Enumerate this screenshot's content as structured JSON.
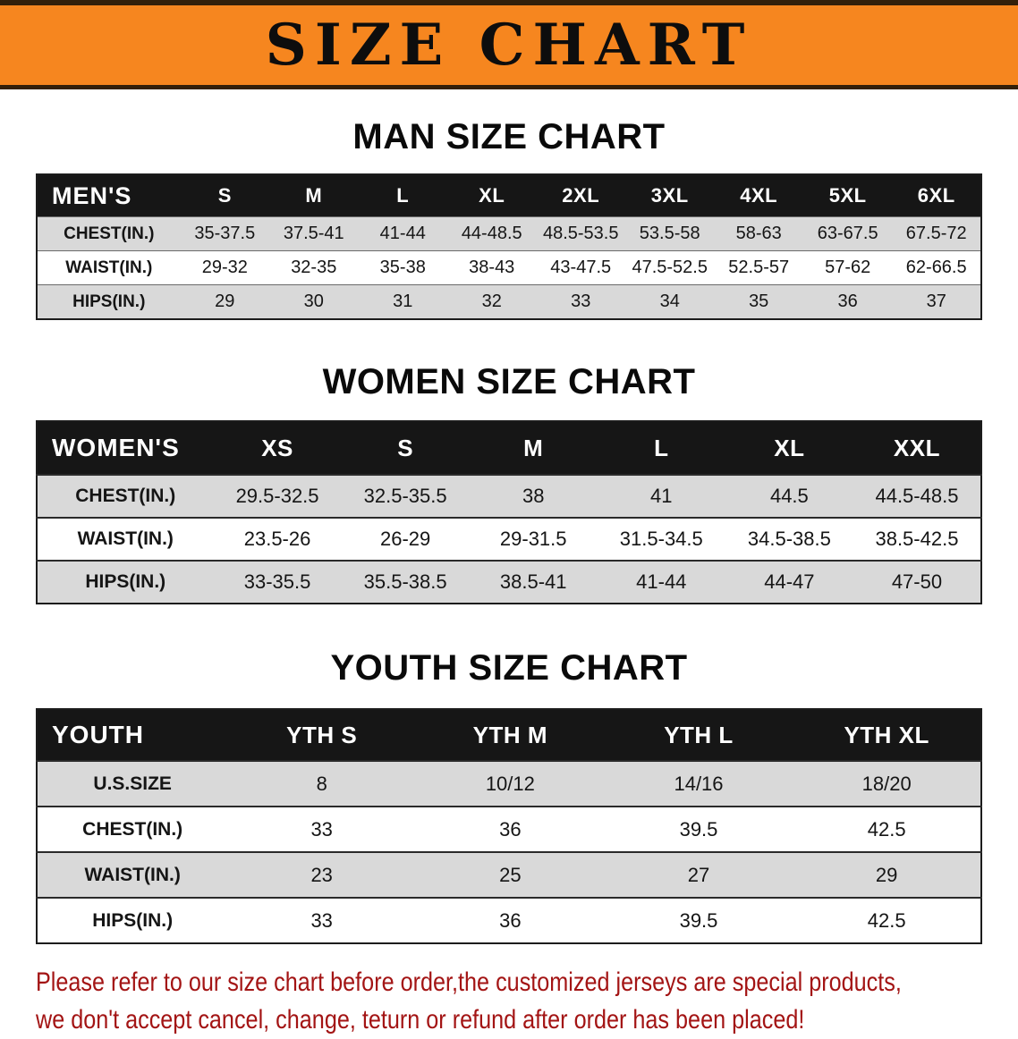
{
  "banner": {
    "title": "SIZE CHART"
  },
  "men": {
    "heading": "MAN SIZE CHART",
    "table": {
      "header": [
        "MEN'S",
        "S",
        "M",
        "L",
        "XL",
        "2XL",
        "3XL",
        "4XL",
        "5XL",
        "6XL"
      ],
      "rows": [
        [
          "CHEST(IN.)",
          "35-37.5",
          "37.5-41",
          "41-44",
          "44-48.5",
          "48.5-53.5",
          "53.5-58",
          "58-63",
          "63-67.5",
          "67.5-72"
        ],
        [
          "WAIST(IN.)",
          "29-32",
          "32-35",
          "35-38",
          "38-43",
          "43-47.5",
          "47.5-52.5",
          "52.5-57",
          "57-62",
          "62-66.5"
        ],
        [
          "HIPS(IN.)",
          "29",
          "30",
          "31",
          "32",
          "33",
          "34",
          "35",
          "36",
          "37"
        ]
      ]
    }
  },
  "women": {
    "heading": "WOMEN SIZE CHART",
    "table": {
      "header": [
        "WOMEN'S",
        "XS",
        "S",
        "M",
        "L",
        "XL",
        "XXL"
      ],
      "rows": [
        [
          "CHEST(IN.)",
          "29.5-32.5",
          "32.5-35.5",
          "38",
          "41",
          "44.5",
          "44.5-48.5"
        ],
        [
          "WAIST(IN.)",
          "23.5-26",
          "26-29",
          "29-31.5",
          "31.5-34.5",
          "34.5-38.5",
          "38.5-42.5"
        ],
        [
          "HIPS(IN.)",
          "33-35.5",
          "35.5-38.5",
          "38.5-41",
          "41-44",
          "44-47",
          "47-50"
        ]
      ]
    }
  },
  "youth": {
    "heading": "YOUTH SIZE CHART",
    "table": {
      "header": [
        "YOUTH",
        "YTH S",
        "YTH M",
        "YTH L",
        "YTH XL"
      ],
      "rows": [
        [
          "U.S.SIZE",
          "8",
          "10/12",
          "14/16",
          "18/20"
        ],
        [
          "CHEST(IN.)",
          "33",
          "36",
          "39.5",
          "42.5"
        ],
        [
          "WAIST(IN.)",
          "23",
          "25",
          "27",
          "29"
        ],
        [
          "HIPS(IN.)",
          "33",
          "36",
          "39.5",
          "42.5"
        ]
      ]
    }
  },
  "disclaimer": {
    "line1": "Please refer to our size chart before order,the customized jerseys are special products,",
    "line2": "we don't accept cancel, change, teturn or refund after order has been placed!"
  },
  "colors": {
    "banner_bg": "#f6861f",
    "table_header_bg": "#161616",
    "row_shaded": "#d9d9d9",
    "disclaimer_text": "#a31414"
  }
}
